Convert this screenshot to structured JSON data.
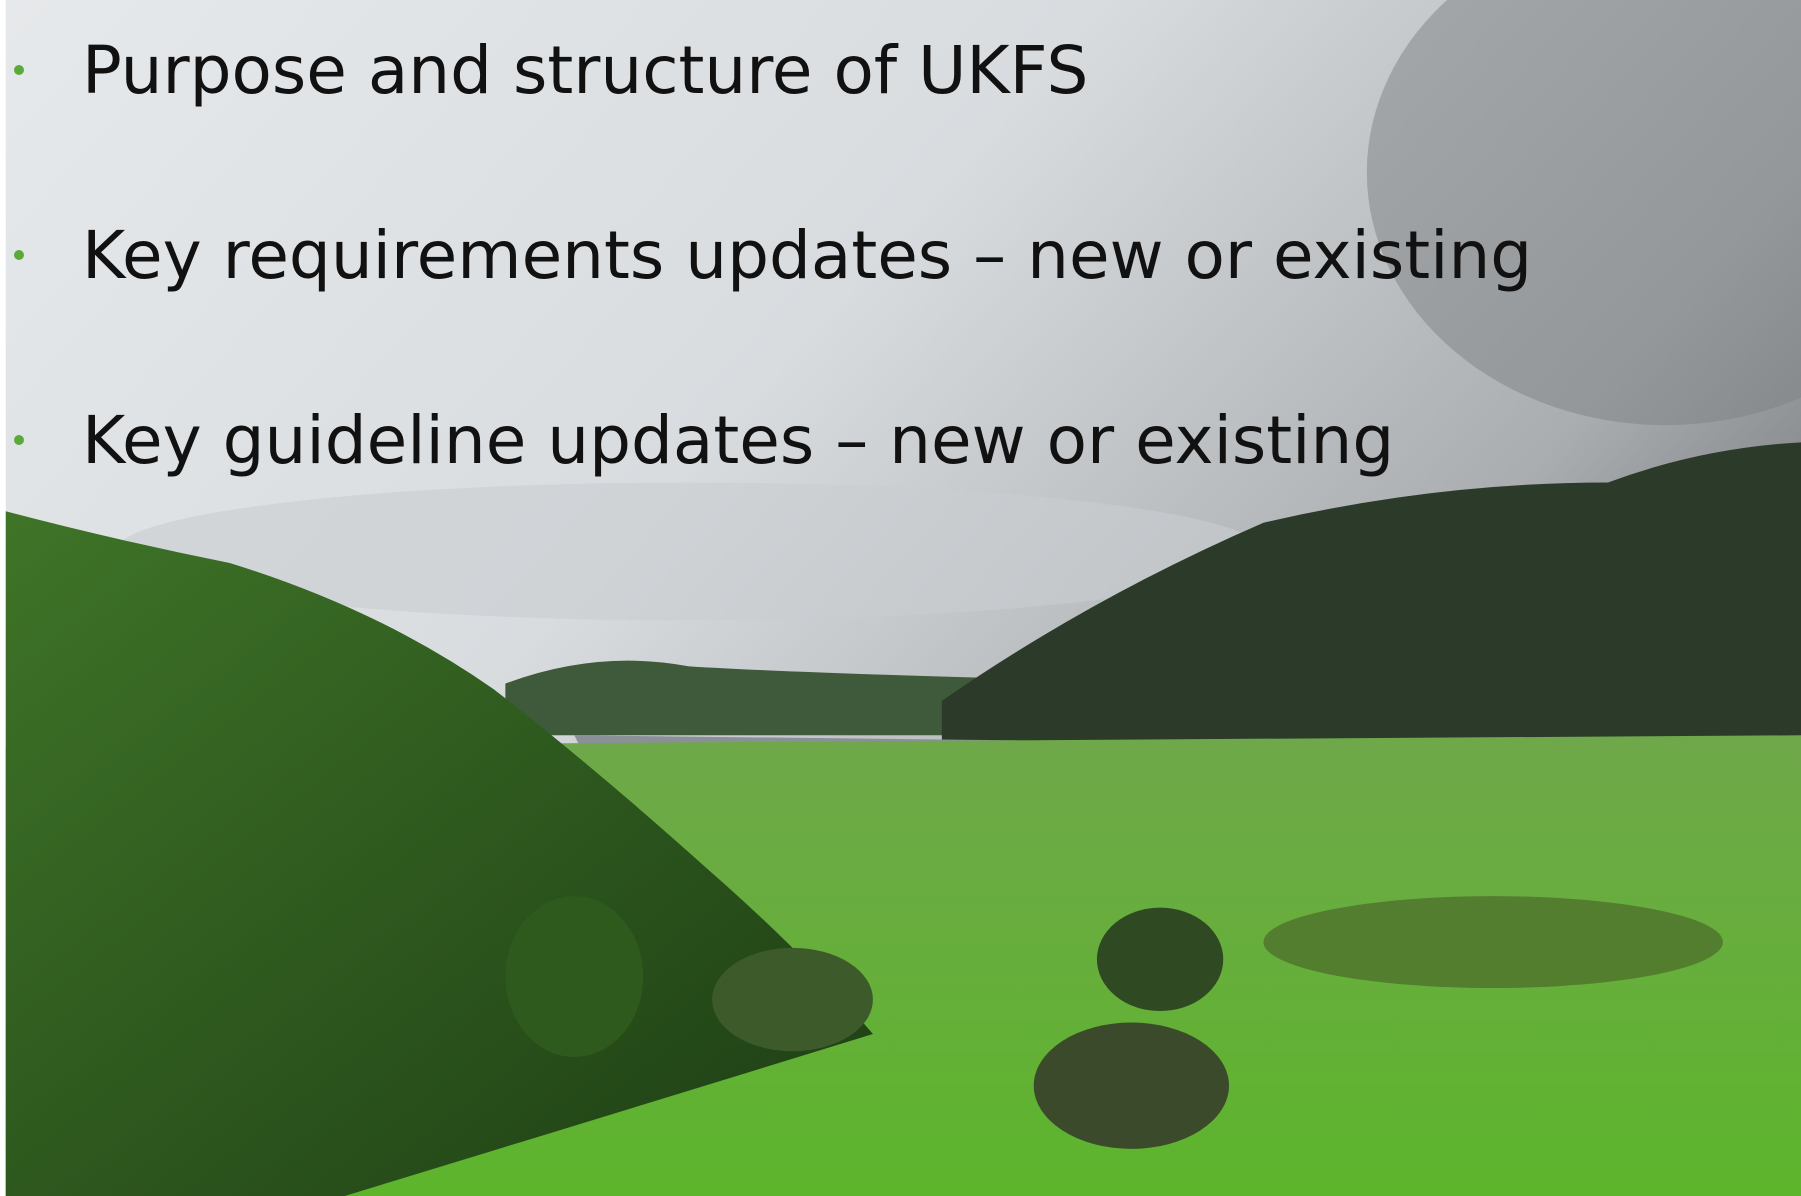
{
  "bullets": [
    "Purpose and structure of UKFS",
    "Key requirements updates – new or existing",
    "Key guideline updates – new or existing"
  ]
}
